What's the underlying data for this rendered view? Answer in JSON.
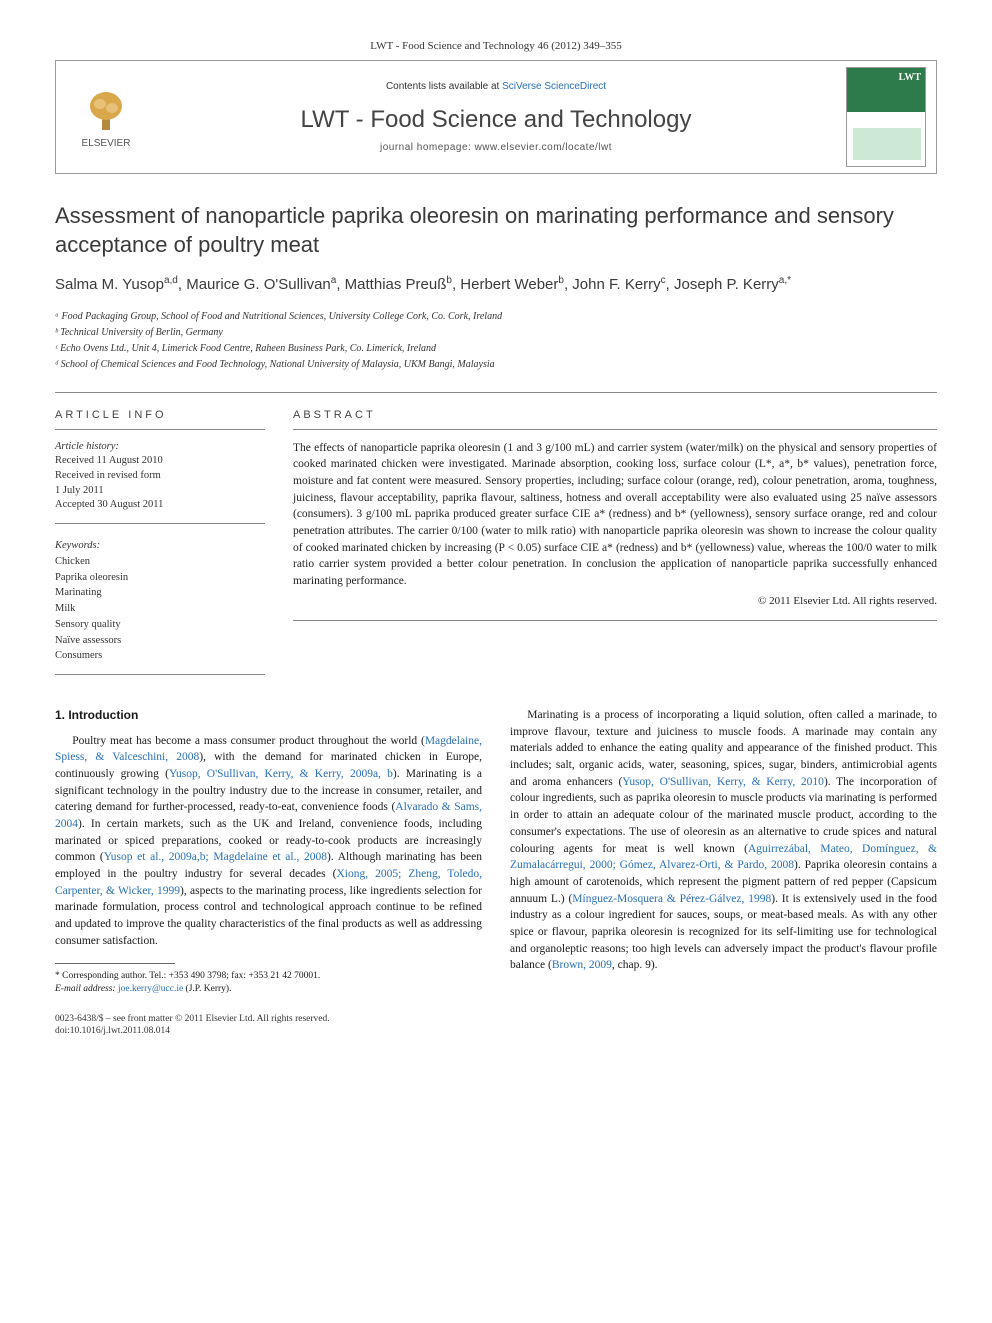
{
  "journal_ref": "LWT - Food Science and Technology 46 (2012) 349–355",
  "header": {
    "contents_prefix": "Contents lists available at ",
    "contents_link": "SciVerse ScienceDirect",
    "journal_name": "LWT - Food Science and Technology",
    "homepage": "journal homepage: www.elsevier.com/locate/lwt",
    "publisher_logo_label": "ELSEVIER"
  },
  "title": "Assessment of nanoparticle paprika oleoresin on marinating performance and sensory acceptance of poultry meat",
  "authors_html": "Salma M. Yusop<sup>a,d</sup>, Maurice G. O'Sullivan<sup>a</sup>, Matthias Preuß<sup>b</sup>, Herbert Weber<sup>b</sup>, John F. Kerry<sup>c</sup>, Joseph P. Kerry<sup>a,*</sup>",
  "affiliations": [
    "ᵃ Food Packaging Group, School of Food and Nutritional Sciences, University College Cork, Co. Cork, Ireland",
    "ᵇ Technical University of Berlin, Germany",
    "ᶜ Echo Ovens Ltd., Unit 4, Limerick Food Centre, Raheen Business Park, Co. Limerick, Ireland",
    "ᵈ School of Chemical Sciences and Food Technology, National University of Malaysia, UKM Bangi, Malaysia"
  ],
  "info": {
    "label": "ARTICLE INFO",
    "history_header": "Article history:",
    "history": [
      "Received 11 August 2010",
      "Received in revised form",
      "1 July 2011",
      "Accepted 30 August 2011"
    ],
    "keywords_header": "Keywords:",
    "keywords": [
      "Chicken",
      "Paprika oleoresin",
      "Marinating",
      "Milk",
      "Sensory quality",
      "Naïve assessors",
      "Consumers"
    ]
  },
  "abstract": {
    "label": "ABSTRACT",
    "text": "The effects of nanoparticle paprika oleoresin (1 and 3 g/100 mL) and carrier system (water/milk) on the physical and sensory properties of cooked marinated chicken were investigated. Marinade absorption, cooking loss, surface colour (L*, a*, b* values), penetration force, moisture and fat content were measured. Sensory properties, including; surface colour (orange, red), colour penetration, aroma, toughness, juiciness, flavour acceptability, paprika flavour, saltiness, hotness and overall acceptability were also evaluated using 25 naïve assessors (consumers). 3 g/100 mL paprika produced greater surface CIE a* (redness) and b* (yellowness), sensory surface orange, red and colour penetration attributes. The carrier 0/100 (water to milk ratio) with nanoparticle paprika oleoresin was shown to increase the colour quality of cooked marinated chicken by increasing (P < 0.05) surface CIE a* (redness) and b* (yellowness) value, whereas the 100/0 water to milk ratio carrier system provided a better colour penetration. In conclusion the application of nanoparticle paprika successfully enhanced marinating performance.",
    "copyright": "© 2011 Elsevier Ltd. All rights reserved."
  },
  "section_heading": "1. Introduction",
  "intro_p1_pre": "Poultry meat has become a mass consumer product throughout the world (",
  "intro_p1_c1": "Magdelaine, Spiess, & Valceschini, 2008",
  "intro_p1_m1": "), with the demand for marinated chicken in Europe, continuously growing (",
  "intro_p1_c2": "Yusop, O'Sullivan, Kerry, & Kerry, 2009a, b",
  "intro_p1_m2": "). Marinating is a significant technology in the poultry industry due to the increase in consumer, retailer, and catering demand for further-processed, ready-to-eat, convenience foods (",
  "intro_p1_c3": "Alvarado & Sams, 2004",
  "intro_p1_m3": "). In certain markets, such as the UK and Ireland, convenience foods, including marinated or spiced preparations, cooked or ready-to-cook products are increasingly common (",
  "intro_p1_c4": "Yusop et al., 2009a,b; Magdelaine et al., 2008",
  "intro_p1_m4": "). Although marinating has been employed in the poultry industry for several decades (",
  "intro_p1_c5": "Xiong, 2005; Zheng, Toledo, Carpenter, & Wicker, 1999",
  "intro_p1_m5": "), aspects to the marinating process, like ingredients selection for marinade formulation, process control and technological approach continue to be refined and updated to improve the quality characteristics of the final products as well as addressing consumer satisfaction.",
  "intro_p2_pre": "Marinating is a process of incorporating a liquid solution, often called a marinade, to improve flavour, texture and juiciness to muscle foods. A marinade may contain any materials added to enhance the eating quality and appearance of the finished product. This includes; salt, organic acids, water, seasoning, spices, sugar, binders, antimicrobial agents and aroma enhancers (",
  "intro_p2_c1": "Yusop, O'Sullivan, Kerry, & Kerry, 2010",
  "intro_p2_m1": "). The incorporation of colour ingredients, such as paprika oleoresin to muscle products via marinating is performed in order to attain an adequate colour of the marinated muscle product, according to the consumer's expectations. The use of oleoresin as an alternative to crude spices and natural colouring agents for meat is well known (",
  "intro_p2_c2": "Aguirrezábal, Mateo, Domínguez, & Zumalacárregui, 2000; Gómez, Alvarez-Orti, & Pardo, 2008",
  "intro_p2_m2": "). Paprika oleoresin contains a high amount of carotenoids, which represent the pigment pattern of red pepper (Capsicum annuum L.) (",
  "intro_p2_c3": "Mínguez-Mosquera & Pérez-Gálvez, 1998",
  "intro_p2_m3": "). It is extensively used in the food industry as a colour ingredient for sauces, soups, or meat-based meals. As with any other spice or flavour, paprika oleoresin is recognized for its self-limiting use for technological and organoleptic reasons; too high levels can adversely impact the product's flavour profile balance (",
  "intro_p2_c4": "Brown, 2009",
  "intro_p2_m4": ", chap. 9).",
  "footnote": {
    "corr": "* Corresponding author. Tel.: +353 490 3798; fax: +353 21 42 70001.",
    "email_label": "E-mail address: ",
    "email": "joe.kerry@ucc.ie",
    "email_suffix": " (J.P. Kerry)."
  },
  "footer": {
    "issn": "0023-6438/$ – see front matter © 2011 Elsevier Ltd. All rights reserved.",
    "doi": "doi:10.1016/j.lwt.2011.08.014"
  },
  "colors": {
    "link": "#2a6fb5",
    "rule": "#888888",
    "text": "#1a1a1a",
    "journal_green": "#2d7a4a"
  },
  "typography": {
    "body_pt": 11.5,
    "title_pt": 22,
    "authors_pt": 15,
    "affil_pt": 10,
    "abstract_pt": 11.5,
    "footnote_pt": 9.5
  }
}
